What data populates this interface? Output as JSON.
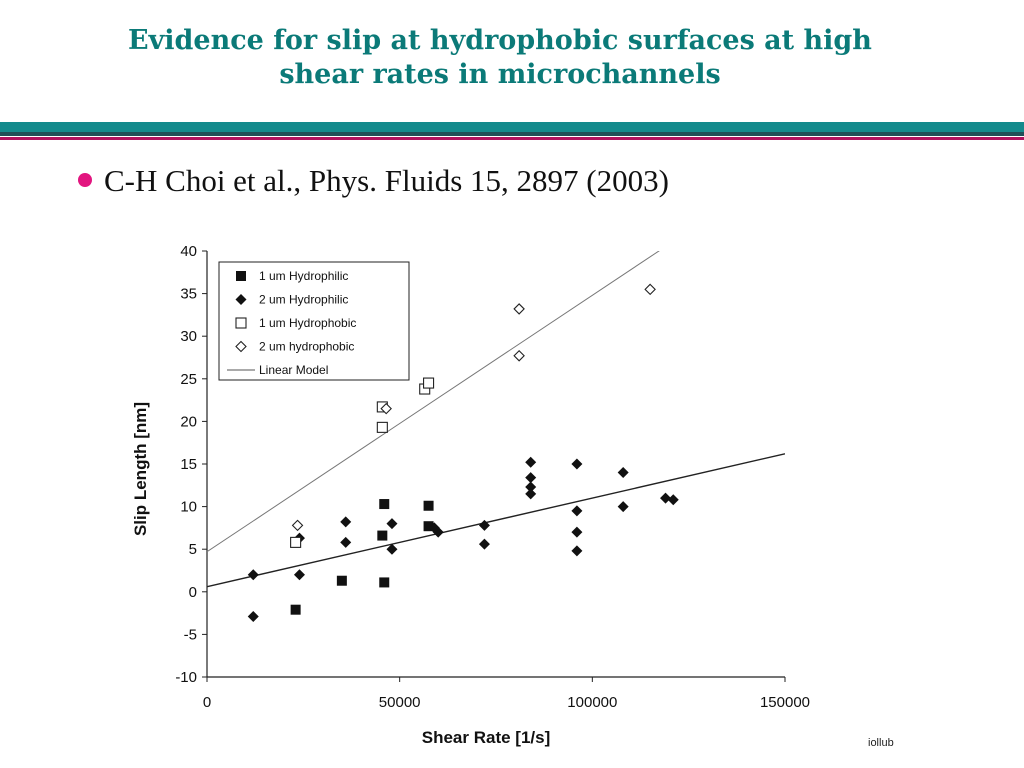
{
  "slide": {
    "title_line1": "Evidence for slip at hydrophobic surfaces at high",
    "title_line2": "shear rates in microchannels",
    "citation": "C-H Choi et al., Phys. Fluids 15, 2897 (2003)",
    "footer_fragment": "iollub",
    "colors": {
      "title": "#0b7a78",
      "bullet": "#e2157f",
      "band_teal": "#138a8c",
      "band_dark": "#1f4f57",
      "band_magenta": "#b0125e"
    }
  },
  "chart_data": {
    "type": "scatter",
    "xlabel": "Shear Rate [1/s]",
    "ylabel": "Slip Length [nm]",
    "xlim": [
      0,
      150000
    ],
    "ylim": [
      -10,
      40
    ],
    "xticks": [
      0,
      50000,
      100000,
      150000
    ],
    "yticks": [
      -10,
      -5,
      0,
      5,
      10,
      15,
      20,
      25,
      30,
      35,
      40
    ],
    "grid": false,
    "legend_position": "top-left",
    "series": [
      {
        "name": "1 um Hydrophilic",
        "marker": "filled-square",
        "points": [
          [
            23000,
            -2.1
          ],
          [
            35000,
            1.3
          ],
          [
            45500,
            6.6
          ],
          [
            46000,
            10.3
          ],
          [
            46000,
            1.1
          ],
          [
            57500,
            10.1
          ],
          [
            57500,
            7.7
          ]
        ]
      },
      {
        "name": "2 um Hydrophilic",
        "marker": "filled-diamond",
        "points": [
          [
            12000,
            2
          ],
          [
            12000,
            -2.9
          ],
          [
            24000,
            6.3
          ],
          [
            24000,
            2
          ],
          [
            36000,
            8.2
          ],
          [
            36000,
            5.8
          ],
          [
            48000,
            8
          ],
          [
            48000,
            5
          ],
          [
            59000,
            7.5
          ],
          [
            60000,
            7
          ],
          [
            72000,
            7.8
          ],
          [
            72000,
            5.6
          ],
          [
            84000,
            15.2
          ],
          [
            84000,
            13.4
          ],
          [
            84000,
            12.3
          ],
          [
            84000,
            11.5
          ],
          [
            96000,
            15
          ],
          [
            96000,
            9.5
          ],
          [
            96000,
            7
          ],
          [
            96000,
            4.8
          ],
          [
            108000,
            14
          ],
          [
            108000,
            10
          ],
          [
            119000,
            11
          ],
          [
            121000,
            10.8
          ]
        ]
      },
      {
        "name": "1 um Hydrophobic",
        "marker": "open-square",
        "points": [
          [
            23000,
            5.8
          ],
          [
            45500,
            21.7
          ],
          [
            45500,
            19.3
          ],
          [
            56500,
            23.8
          ],
          [
            57500,
            24.5
          ]
        ]
      },
      {
        "name": "2 um hydrophobic",
        "marker": "open-diamond",
        "points": [
          [
            23500,
            7.8
          ],
          [
            46500,
            21.5
          ],
          [
            81000,
            33.2
          ],
          [
            81000,
            27.7
          ],
          [
            115000,
            35.5
          ]
        ]
      },
      {
        "name": "Linear Model",
        "marker": "line",
        "lines": [
          {
            "intercept": 4.7,
            "slope": 0.000301
          },
          {
            "intercept": 0.6,
            "slope": 0.000104
          }
        ]
      }
    ]
  }
}
